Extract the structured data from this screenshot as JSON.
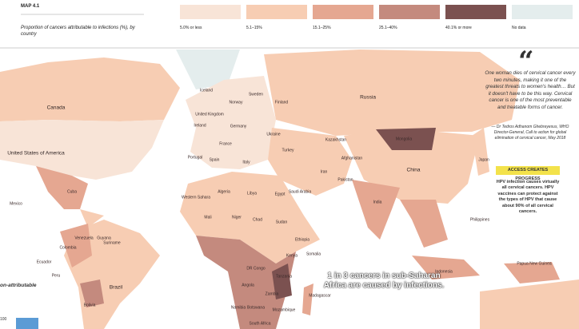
{
  "header": {
    "map_number": "MAP 4.1",
    "title": "Proportion of cancers attributable to infections (%), by country"
  },
  "legend": [
    {
      "label": "5.0% or less",
      "color": "#f8e4d7"
    },
    {
      "label": "5.1–15%",
      "color": "#f7cdb3"
    },
    {
      "label": "15.1–25%",
      "color": "#e5a791"
    },
    {
      "label": "25.1–40%",
      "color": "#c48a7e"
    },
    {
      "label": "40.1% or more",
      "color": "#7b5150"
    },
    {
      "label": "No data",
      "color": "#e4eded"
    }
  ],
  "countries": [
    "Canada",
    "United States of America",
    "Mexico",
    "Colombia",
    "Venezuela",
    "Ecuador",
    "Peru",
    "Brazil",
    "Bolivia",
    "Iceland",
    "Norway",
    "Sweden",
    "Finland",
    "United Kingdom",
    "Ireland",
    "Germany",
    "France",
    "Spain",
    "Portugal",
    "Italy",
    "Ukraine",
    "Turkey",
    "Russia",
    "Kazakhstan",
    "Mongolia",
    "China",
    "Iran",
    "Afghanistan",
    "Pakistan",
    "India",
    "Saudi Arabia",
    "Egypt",
    "Libya",
    "Algeria",
    "Western Sahara",
    "Mali",
    "Niger",
    "Chad",
    "Sudan",
    "Ethiopia",
    "Somalia",
    "Kenya",
    "DR Congo",
    "Tanzania",
    "Angola",
    "Zambia",
    "Namibia",
    "Botswana",
    "Mozambique",
    "Madagascar",
    "South Africa",
    "Japan",
    "Philippines",
    "Indonesia",
    "Papua New Guinea",
    "Cuba",
    "Guyana",
    "Suriname"
  ],
  "quote": {
    "text": "One woman dies of cervical cancer every two minutes, making it one of the greatest threats to women's health… But it doesn't have to be this way. Cervical cancer is one of the most preventable and treatable forms of cancer.",
    "attribution": "— Dr Tedros Adhanom Ghebreyesus, WHO Director-General, Call to action for global elimination of cervical cancer, May 2018"
  },
  "side_box": {
    "title": "ACCESS CREATES PROGRESS",
    "text": "HPV infection causes virtually all cervical cancers. HPV vaccines can protect against the types of HPV that cause about 90% of all cervical cancers."
  },
  "callout": "1 in 3 cancers in sub-Saharan Africa are caused by infections.",
  "left_text": "on-attributable",
  "left_number": "100"
}
